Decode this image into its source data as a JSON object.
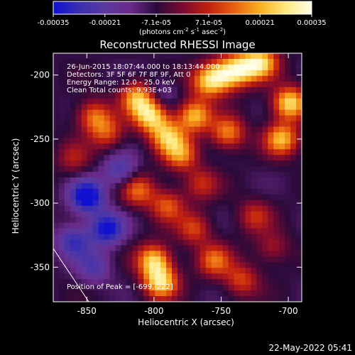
{
  "chart_data": {
    "type": "heatmap",
    "title": "Reconstructed RHESSI Image",
    "xlabel": "Heliocentric X (arcsec)",
    "ylabel": "Heliocentric Y (arcsec)",
    "xlim": [
      -875,
      -690
    ],
    "ylim": [
      -377,
      -183
    ],
    "x_ticks": [
      -850,
      -800,
      -750,
      -700
    ],
    "y_ticks": [
      -200,
      -250,
      -300,
      -350
    ],
    "x_tick_labels": [
      "-850",
      "-800",
      "-750",
      "-700"
    ],
    "y_tick_labels": [
      "-200",
      "-250",
      "-300",
      "-350"
    ],
    "colorbar": {
      "range": [
        -0.00035,
        0.00035
      ],
      "ticks": [
        -0.00035,
        -0.00021,
        -7.1e-05,
        7.1e-05,
        0.00021,
        0.00035
      ],
      "tick_labels": [
        "-0.00035",
        "-0.00021",
        "-7.1e-05",
        "7.1e-05",
        "0.00021",
        "0.00035"
      ],
      "unit_prefix": "(photons cm",
      "unit_sup1": "-2",
      "unit_mid1": " s",
      "unit_sup2": "-1",
      "unit_mid2": " asec",
      "unit_sup3": "-2",
      "unit_suffix": ")",
      "colors": [
        "#1010d0",
        "#3a2fb0",
        "#5a3aa0",
        "#6a2a8a",
        "#2a0a3a",
        "#7a0a30",
        "#c02010",
        "#e86010",
        "#f8b020",
        "#ffe880",
        "#ffffe8"
      ]
    },
    "annotations": [
      "26-Jun-2015 18:07:44.000 to 18:13:44.000",
      "Detectors: 3F 5F 6F 7F 8F 9F, Att 0",
      "Energy Range: 12.0 - 25.0 keV",
      "Clean    Total counts: 9.93E+03"
    ],
    "peak_label": "Position of Peak = [-699,-222]",
    "peak": [
      -699,
      -222
    ],
    "ridges": [
      {
        "x": -812,
        "y": -218,
        "v": 0.0003
      },
      {
        "x": -802,
        "y": -232,
        "v": 0.00033
      },
      {
        "x": -790,
        "y": -248,
        "v": 0.00028
      },
      {
        "x": -780,
        "y": -262,
        "v": 0.00024
      },
      {
        "x": -770,
        "y": -232,
        "v": 0.0003
      },
      {
        "x": -760,
        "y": -205,
        "v": 0.00028
      },
      {
        "x": -748,
        "y": -200,
        "v": 0.00027
      },
      {
        "x": -745,
        "y": -245,
        "v": 0.00025
      },
      {
        "x": -735,
        "y": -195,
        "v": 0.0003
      },
      {
        "x": -720,
        "y": -190,
        "v": 0.00032
      },
      {
        "x": -699,
        "y": -222,
        "v": 0.00035
      },
      {
        "x": -705,
        "y": -250,
        "v": 0.0003
      },
      {
        "x": -845,
        "y": -232,
        "v": 0.00022
      },
      {
        "x": -835,
        "y": -245,
        "v": 0.00018
      },
      {
        "x": -860,
        "y": -265,
        "v": 0.00012
      },
      {
        "x": -812,
        "y": -290,
        "v": 0.00022
      },
      {
        "x": -790,
        "y": -302,
        "v": 0.0002
      },
      {
        "x": -770,
        "y": -320,
        "v": 0.00018
      },
      {
        "x": -800,
        "y": -345,
        "v": 0.00032
      },
      {
        "x": -795,
        "y": -362,
        "v": 0.00033
      },
      {
        "x": -755,
        "y": -345,
        "v": 0.00022
      },
      {
        "x": -735,
        "y": -360,
        "v": 0.00018
      },
      {
        "x": -725,
        "y": -310,
        "v": 0.00015
      },
      {
        "x": -712,
        "y": -335,
        "v": 0.00012
      },
      {
        "x": -765,
        "y": -285,
        "v": 0.00015
      }
    ],
    "lows": [
      {
        "x": -850,
        "y": -295,
        "v": -0.00032
      },
      {
        "x": -835,
        "y": -320,
        "v": -0.00028
      },
      {
        "x": -860,
        "y": -330,
        "v": -0.0002
      },
      {
        "x": -825,
        "y": -275,
        "v": -0.00018
      },
      {
        "x": -795,
        "y": -215,
        "v": -0.0001
      },
      {
        "x": -845,
        "y": -350,
        "v": -0.00015
      }
    ]
  },
  "timestamp": "22-May-2022 05:41"
}
